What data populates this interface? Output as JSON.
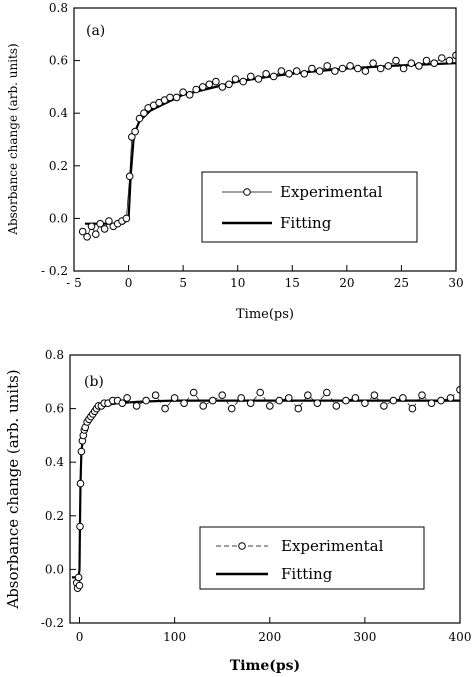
{
  "chart_data": [
    {
      "type": "scatter",
      "panel_label": "(a)",
      "xlabel": "Time(ps)",
      "ylabel": "Absorbance change (arb. units)",
      "xlim": [
        -5,
        30
      ],
      "ylim": [
        -0.2,
        0.8
      ],
      "xticks": [
        -5,
        0,
        5,
        10,
        15,
        20,
        25,
        30
      ],
      "xtick_labels": [
        "- 5",
        "0",
        "5",
        "10",
        "15",
        "20",
        "25",
        "30"
      ],
      "yticks": [
        -0.2,
        0.0,
        0.2,
        0.4,
        0.6,
        0.8
      ],
      "ytick_labels": [
        "- 0.2",
        "0.0",
        "0.2",
        "0.4",
        "0.6",
        "0.8"
      ],
      "legend_position": "center-right",
      "series": [
        {
          "name": "Experimental",
          "style": "open circles joined by thin line",
          "x": [
            -4.2,
            -3.8,
            -3.4,
            -3.0,
            -2.6,
            -2.2,
            -1.8,
            -1.4,
            -1.0,
            -0.6,
            -0.2,
            0.1,
            0.3,
            0.6,
            1.0,
            1.4,
            1.8,
            2.3,
            2.8,
            3.3,
            3.8,
            4.4,
            5.0,
            5.6,
            6.2,
            6.8,
            7.4,
            8.0,
            8.6,
            9.2,
            9.8,
            10.5,
            11.2,
            11.9,
            12.6,
            13.3,
            14.0,
            14.7,
            15.4,
            16.1,
            16.8,
            17.5,
            18.2,
            18.9,
            19.6,
            20.3,
            21.0,
            21.7,
            22.4,
            23.1,
            23.8,
            24.5,
            25.2,
            25.9,
            26.6,
            27.3,
            28.0,
            28.7,
            29.4,
            30.0
          ],
          "y": [
            -0.05,
            -0.07,
            -0.03,
            -0.06,
            -0.02,
            -0.04,
            -0.01,
            -0.03,
            -0.02,
            -0.01,
            0.0,
            0.16,
            0.31,
            0.33,
            0.38,
            0.4,
            0.42,
            0.43,
            0.44,
            0.45,
            0.46,
            0.46,
            0.48,
            0.47,
            0.49,
            0.5,
            0.51,
            0.52,
            0.5,
            0.51,
            0.53,
            0.52,
            0.54,
            0.53,
            0.55,
            0.54,
            0.56,
            0.55,
            0.56,
            0.55,
            0.57,
            0.56,
            0.58,
            0.56,
            0.57,
            0.58,
            0.57,
            0.56,
            0.59,
            0.57,
            0.58,
            0.6,
            0.57,
            0.59,
            0.58,
            0.6,
            0.59,
            0.61,
            0.6,
            0.62
          ]
        },
        {
          "name": "Fitting",
          "style": "thick solid line",
          "x": [
            -4,
            -2,
            -0.5,
            0,
            0.2,
            0.5,
            1,
            2,
            3,
            5,
            7,
            10,
            13,
            16,
            20,
            24,
            27,
            30
          ],
          "y": [
            -0.02,
            -0.02,
            -0.02,
            0.0,
            0.17,
            0.32,
            0.37,
            0.41,
            0.43,
            0.47,
            0.49,
            0.52,
            0.54,
            0.555,
            0.57,
            0.58,
            0.585,
            0.59
          ]
        }
      ]
    },
    {
      "type": "scatter",
      "panel_label": "(b)",
      "xlabel": "Time(ps)",
      "ylabel": "Absorbance change (arb. units)",
      "xlim": [
        -10,
        400
      ],
      "ylim": [
        -0.2,
        0.8
      ],
      "xticks": [
        0,
        100,
        200,
        300,
        400
      ],
      "xtick_labels": [
        "0",
        "100",
        "200",
        "300",
        "400"
      ],
      "yticks": [
        -0.2,
        0.0,
        0.2,
        0.4,
        0.6,
        0.8
      ],
      "ytick_labels": [
        "-0.2",
        "0.0",
        "0.2",
        "0.4",
        "0.6",
        "0.8"
      ],
      "legend_position": "center-right",
      "series": [
        {
          "name": "Experimental",
          "style": "open circles joined by dashed line",
          "x": [
            -3,
            -2,
            -1,
            0,
            0.5,
            1,
            2,
            3,
            4,
            5,
            6,
            8,
            10,
            12,
            14,
            16,
            18,
            20,
            23,
            26,
            30,
            35,
            40,
            45,
            50,
            60,
            70,
            80,
            90,
            100,
            110,
            120,
            130,
            140,
            150,
            160,
            170,
            180,
            190,
            200,
            210,
            220,
            230,
            240,
            250,
            260,
            270,
            280,
            290,
            300,
            310,
            320,
            330,
            340,
            350,
            360,
            370,
            380,
            390,
            400
          ],
          "y": [
            -0.05,
            -0.07,
            -0.03,
            -0.06,
            0.16,
            0.32,
            0.44,
            0.48,
            0.5,
            0.52,
            0.53,
            0.55,
            0.56,
            0.57,
            0.58,
            0.59,
            0.6,
            0.61,
            0.61,
            0.62,
            0.62,
            0.63,
            0.63,
            0.62,
            0.64,
            0.61,
            0.63,
            0.65,
            0.6,
            0.64,
            0.62,
            0.66,
            0.61,
            0.63,
            0.65,
            0.6,
            0.64,
            0.62,
            0.66,
            0.61,
            0.63,
            0.64,
            0.6,
            0.65,
            0.62,
            0.66,
            0.61,
            0.63,
            0.64,
            0.62,
            0.65,
            0.61,
            0.63,
            0.64,
            0.6,
            0.65,
            0.62,
            0.63,
            0.64,
            0.67
          ]
        },
        {
          "name": "Fitting",
          "style": "thick solid line",
          "x": [
            -8,
            -1,
            0,
            0.5,
            1,
            2,
            4,
            6,
            10,
            15,
            20,
            30,
            40,
            60,
            80,
            100,
            200,
            300,
            400
          ],
          "y": [
            -0.03,
            -0.03,
            0.0,
            0.18,
            0.32,
            0.44,
            0.5,
            0.53,
            0.56,
            0.58,
            0.6,
            0.615,
            0.62,
            0.625,
            0.628,
            0.63,
            0.63,
            0.63,
            0.63
          ]
        }
      ]
    }
  ]
}
